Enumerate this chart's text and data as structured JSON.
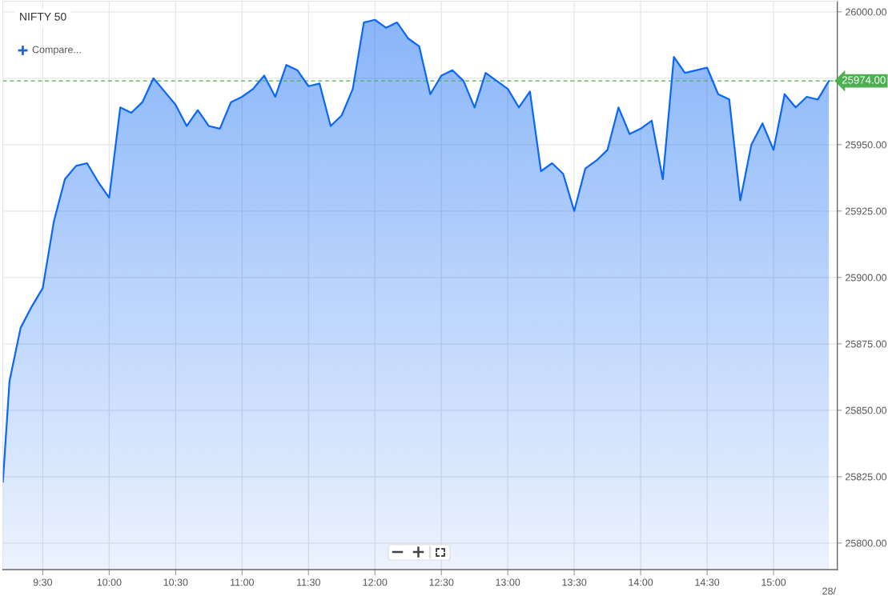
{
  "chart_data": {
    "type": "area",
    "title": "NIFTY 50",
    "x": [
      9.2,
      9.25,
      9.3333,
      9.4167,
      9.5,
      9.5833,
      9.6667,
      9.75,
      9.8333,
      9.9167,
      10,
      10.0833,
      10.1667,
      10.25,
      10.3333,
      10.4167,
      10.5,
      10.5833,
      10.6667,
      10.75,
      10.8333,
      10.9167,
      11,
      11.0833,
      11.1667,
      11.25,
      11.3333,
      11.4167,
      11.5,
      11.5833,
      11.6667,
      11.75,
      11.8333,
      11.9167,
      12,
      12.0833,
      12.1667,
      12.25,
      12.3333,
      12.4167,
      12.5,
      12.5833,
      12.6667,
      12.75,
      12.8333,
      12.9167,
      13,
      13.0833,
      13.1667,
      13.25,
      13.3333,
      13.4167,
      13.5,
      13.5833,
      13.6667,
      13.75,
      13.8333,
      13.9167,
      14,
      14.0833,
      14.1667,
      14.25,
      14.3333,
      14.4167,
      14.5,
      14.5833,
      14.6667,
      14.75,
      14.8333,
      14.9167,
      15,
      15.0833,
      15.1667,
      15.25,
      15.3333,
      15.4167
    ],
    "values": [
      25823,
      25861,
      25881,
      25889,
      25896,
      25921,
      25937,
      25942,
      25943,
      25936,
      25930,
      25964,
      25962,
      25966,
      25975,
      25970,
      25965,
      25957,
      25963,
      25957,
      25956,
      25966,
      25968,
      25971,
      25976,
      25968,
      25980,
      25978,
      25972,
      25973,
      25957,
      25961,
      25971,
      25996,
      25997,
      25994,
      25996,
      25990,
      25987,
      25969,
      25976,
      25978,
      25974,
      25964,
      25977,
      25974,
      25971,
      25964,
      25970,
      25940,
      25943,
      25939,
      25925,
      25941,
      25944,
      25948,
      25964,
      25954,
      25956,
      25959,
      25937,
      25983,
      25977,
      25978,
      25979,
      25969,
      25967,
      25929,
      25950,
      25958,
      25948,
      25969,
      25964,
      25968,
      25967,
      25974
    ],
    "color": "#0b67f5",
    "xlim": [
      9.2,
      15.48
    ],
    "xticks": [
      {
        "value": 9.5,
        "label": "9:30"
      },
      {
        "value": 10,
        "label": "10:00"
      },
      {
        "value": 10.5,
        "label": "10:30"
      },
      {
        "value": 11,
        "label": "11:00"
      },
      {
        "value": 11.5,
        "label": "11:30"
      },
      {
        "value": 12,
        "label": "12:00"
      },
      {
        "value": 12.5,
        "label": "12:30"
      },
      {
        "value": 13,
        "label": "13:00"
      },
      {
        "value": 13.5,
        "label": "13:30"
      },
      {
        "value": 14,
        "label": "14:00"
      },
      {
        "value": 14.5,
        "label": "14:30"
      },
      {
        "value": 15,
        "label": "15:00"
      }
    ],
    "ylim": [
      25790,
      26004
    ],
    "yticks": [
      {
        "value": 25800,
        "label": "25800.00"
      },
      {
        "value": 25825,
        "label": "25825.00"
      },
      {
        "value": 25850,
        "label": "25850.00"
      },
      {
        "value": 25875,
        "label": "25875.00"
      },
      {
        "value": 25900,
        "label": "25900.00"
      },
      {
        "value": 25925,
        "label": "25925.00"
      },
      {
        "value": 25950,
        "label": "25950.00"
      },
      {
        "value": 25975,
        "label": null
      },
      {
        "value": 26000,
        "label": "26000.00"
      }
    ],
    "grid": true,
    "ref_lines": [
      {
        "axis": "y",
        "value": 25974,
        "label": "25974.00",
        "color": "#4caf50",
        "line_style": "dashed"
      }
    ],
    "annotations": [
      "Compare...",
      "28/"
    ]
  }
}
